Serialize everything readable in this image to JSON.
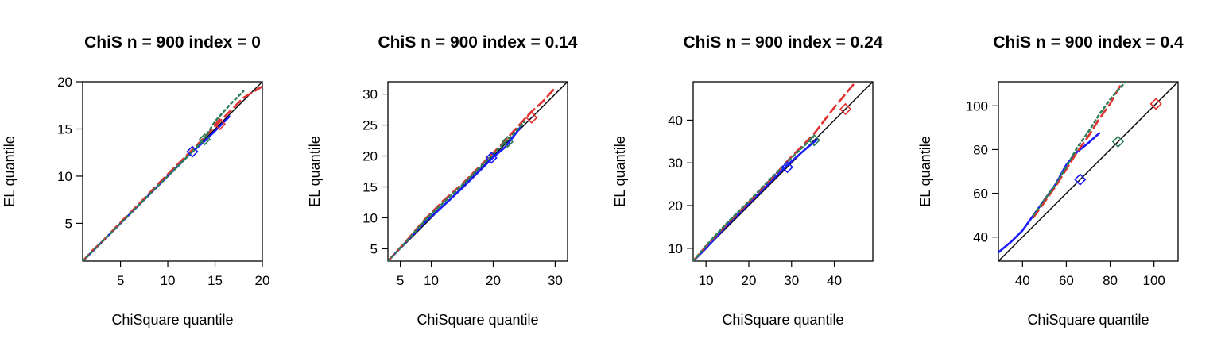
{
  "colors": {
    "blue": "#1a1aff",
    "red": "#e0312f",
    "green": "#2e7d5b",
    "black": "#000000"
  },
  "chart_data": [
    {
      "type": "line",
      "title": "ChiS n = 900 index = 0",
      "xlabel": "ChiSquare quantile",
      "ylabel": "EL quantile",
      "xlim": [
        1,
        20
      ],
      "ylim": [
        1,
        20
      ],
      "xticks": [
        5,
        10,
        15,
        20
      ],
      "yticks": [
        5,
        10,
        15,
        20
      ],
      "grid": false,
      "series": [
        {
          "color": "blue",
          "style": "solid",
          "x": [
            1,
            3,
            5,
            7,
            9,
            11,
            12.5,
            14,
            15.5,
            16.5
          ],
          "y": [
            1,
            3,
            5,
            7,
            9,
            11,
            12.5,
            13.8,
            15.3,
            16.3
          ]
        },
        {
          "color": "red",
          "style": "dashed",
          "x": [
            1,
            2,
            3,
            5,
            7,
            9,
            11,
            13,
            15,
            16.5,
            18,
            20
          ],
          "y": [
            1,
            2.1,
            3,
            5.1,
            7.1,
            9.2,
            11.2,
            13.2,
            15.3,
            16.8,
            18.3,
            19.5
          ]
        },
        {
          "color": "green",
          "style": "dotted",
          "x": [
            1,
            3,
            5,
            7,
            9,
            11,
            13,
            14,
            15,
            16.5,
            18
          ],
          "y": [
            1,
            3,
            5,
            7,
            9,
            11,
            13,
            14.2,
            15.8,
            17.5,
            19
          ]
        }
      ],
      "markers": [
        {
          "color": "blue",
          "x": 12.6,
          "y": 12.6
        },
        {
          "color": "green",
          "x": 13.9,
          "y": 13.9
        },
        {
          "color": "red",
          "x": 15.5,
          "y": 15.5
        }
      ]
    },
    {
      "type": "line",
      "title": "ChiS n = 900 index = 0.14",
      "xlabel": "ChiSquare quantile",
      "ylabel": "EL quantile",
      "xlim": [
        3,
        32
      ],
      "ylim": [
        3,
        32
      ],
      "xticks": [
        5,
        10,
        20,
        30
      ],
      "yticks": [
        5,
        10,
        15,
        20,
        25,
        30
      ],
      "grid": false,
      "series": [
        {
          "color": "blue",
          "style": "solid",
          "x": [
            3,
            6,
            9,
            12,
            15,
            18,
            20,
            22,
            24.5
          ],
          "y": [
            3,
            6.2,
            9.3,
            12,
            14.8,
            17.8,
            19.8,
            21.5,
            24.8
          ]
        },
        {
          "color": "red",
          "style": "dashed",
          "x": [
            3,
            6,
            9,
            12,
            15,
            18,
            21,
            24,
            26,
            28,
            30
          ],
          "y": [
            3,
            6.3,
            9.8,
            12.8,
            15.5,
            18.5,
            21.5,
            24.8,
            27,
            28.8,
            31
          ]
        },
        {
          "color": "green",
          "style": "dotted",
          "x": [
            3,
            6,
            9,
            12,
            15,
            18,
            21,
            23,
            25
          ],
          "y": [
            3,
            6.2,
            9.6,
            12.5,
            15.3,
            18.3,
            21.3,
            23.3,
            25.5
          ]
        }
      ],
      "markers": [
        {
          "color": "blue",
          "x": 19.7,
          "y": 19.7
        },
        {
          "color": "green",
          "x": 22.3,
          "y": 22.3
        },
        {
          "color": "red",
          "x": 26.2,
          "y": 26.2
        }
      ]
    },
    {
      "type": "line",
      "title": "ChiS n = 900 index = 0.24",
      "xlabel": "ChiSquare quantile",
      "ylabel": "EL quantile",
      "xlim": [
        7,
        49
      ],
      "ylim": [
        7,
        49
      ],
      "xticks": [
        10,
        20,
        30,
        40
      ],
      "yticks": [
        10,
        20,
        30,
        40
      ],
      "grid": false,
      "series": [
        {
          "color": "blue",
          "style": "solid",
          "x": [
            7,
            10,
            15,
            20,
            25,
            29,
            33,
            36
          ],
          "y": [
            7,
            10,
            15.5,
            20.5,
            25.5,
            29.5,
            33,
            35.5
          ]
        },
        {
          "color": "red",
          "style": "dashed",
          "x": [
            7,
            10,
            15,
            20,
            25,
            30,
            35,
            40,
            45
          ],
          "y": [
            7,
            10.5,
            15.8,
            20.8,
            26,
            31.5,
            36.5,
            43,
            49
          ]
        },
        {
          "color": "green",
          "style": "dotted",
          "x": [
            7,
            10,
            15,
            20,
            25,
            30,
            35
          ],
          "y": [
            7,
            10.6,
            16,
            21,
            26.2,
            31.2,
            36
          ]
        }
      ],
      "markers": [
        {
          "color": "blue",
          "x": 29,
          "y": 29
        },
        {
          "color": "green",
          "x": 35.3,
          "y": 35.3
        },
        {
          "color": "red",
          "x": 42.6,
          "y": 42.6
        }
      ]
    },
    {
      "type": "line",
      "title": "ChiS n = 900 index = 0.4",
      "xlabel": "ChiSquare quantile",
      "ylabel": "EL quantile",
      "xlim": [
        29,
        111
      ],
      "ylim": [
        29,
        111
      ],
      "xticks": [
        40,
        60,
        80,
        100
      ],
      "yticks": [
        40,
        60,
        80,
        100
      ],
      "grid": false,
      "series": [
        {
          "color": "blue",
          "style": "solid",
          "x": [
            29,
            35,
            40,
            45,
            50,
            55,
            60,
            65,
            70,
            75
          ],
          "y": [
            33,
            38,
            43,
            50,
            57,
            64,
            73,
            79,
            83,
            87.5
          ]
        },
        {
          "color": "red",
          "style": "dashed",
          "x": [
            45,
            50,
            55,
            60,
            65,
            70,
            75,
            80,
            85
          ],
          "y": [
            49,
            56,
            63,
            71,
            79,
            86,
            94,
            101,
            110
          ]
        },
        {
          "color": "green",
          "style": "dotted",
          "x": [
            45,
            50,
            55,
            60,
            65,
            70,
            75,
            80,
            87
          ],
          "y": [
            50,
            57,
            64,
            72,
            81,
            88,
            96,
            103,
            111
          ]
        }
      ],
      "markers": [
        {
          "color": "blue",
          "x": 66.3,
          "y": 66.3
        },
        {
          "color": "green",
          "x": 83.6,
          "y": 83.6
        },
        {
          "color": "red",
          "x": 100.9,
          "y": 100.9
        }
      ]
    }
  ]
}
